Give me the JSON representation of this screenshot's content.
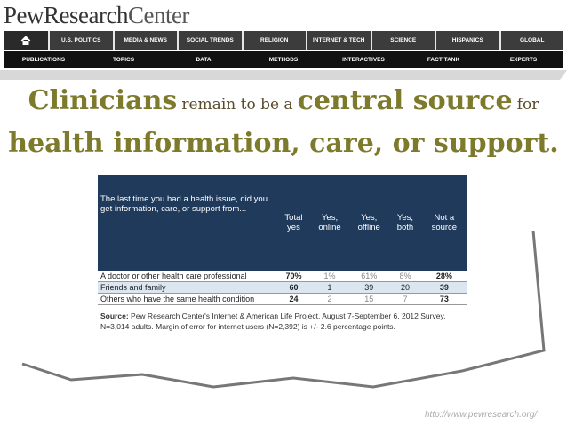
{
  "header": {
    "logo": [
      "PewResearch",
      "Center"
    ],
    "nav_primary": [
      "U.S. POLITICS",
      "MEDIA & NEWS",
      "SOCIAL TRENDS",
      "RELIGION",
      "INTERNET & TECH",
      "SCIENCE",
      "HISPANICS",
      "GLOBAL"
    ],
    "nav_secondary": [
      "PUBLICATIONS",
      "TOPICS",
      "DATA",
      "METHODS",
      "INTERACTIVES",
      "FACT TANK",
      "EXPERTS"
    ]
  },
  "headline": {
    "parts": [
      "Clinicians",
      "remain to be a",
      "central source",
      "for"
    ],
    "line2": "health information, care, or support."
  },
  "table": {
    "columns": [
      "The last time you had a health issue, did you get information, care, or support from...",
      "Total yes",
      "Yes, online",
      "Yes, offline",
      "Yes, both",
      "Not a source"
    ],
    "rows": [
      [
        "A doctor or other health care professional",
        "70%",
        "1%",
        "61%",
        "8%",
        "28%"
      ],
      [
        "Friends and family",
        "60",
        "1",
        "39",
        "20",
        "39"
      ],
      [
        "Others who have the same health condition",
        "24",
        "2",
        "15",
        "7",
        "73"
      ]
    ],
    "source_label": "Source:",
    "source": "Pew Research Center's Internet & American Life Project, August 7-September 6, 2012 Survey. N=3,014 adults. Margin of error for internet users (N=2,392) is +/- 2.6 percentage points."
  },
  "footer": {
    "url": "http://www.pewresearch.org/"
  }
}
